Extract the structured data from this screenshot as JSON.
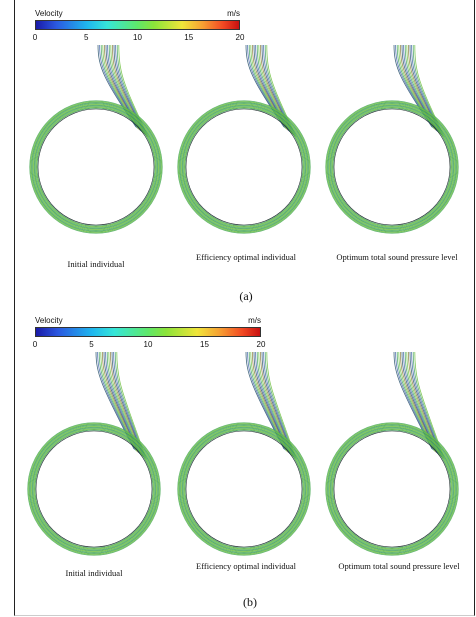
{
  "colors": {
    "flow_outer": "#3fa05a",
    "flow_inner": "#6fbf3f",
    "flow_dark": "#27506b",
    "flow_blue": "#3b5fa8",
    "legend_border": "#333333"
  },
  "panels": [
    {
      "id": "a",
      "label": "(a)",
      "legend": {
        "title": "Velocity",
        "unit": "m/s",
        "ticks": [
          "0",
          "5",
          "10",
          "15",
          "20"
        ]
      },
      "captions": [
        "Initial individual",
        "Efficiency optimal individual",
        "Optimum total sound pressure level"
      ]
    },
    {
      "id": "b",
      "label": "(b)",
      "legend": {
        "title": "Velocity",
        "unit": "m/s",
        "ticks": [
          "0",
          "5",
          "10",
          "15",
          "20"
        ]
      },
      "captions": [
        "Initial individual",
        "Efficiency optimal individual",
        "Optimum total sound pressure level"
      ]
    }
  ]
}
